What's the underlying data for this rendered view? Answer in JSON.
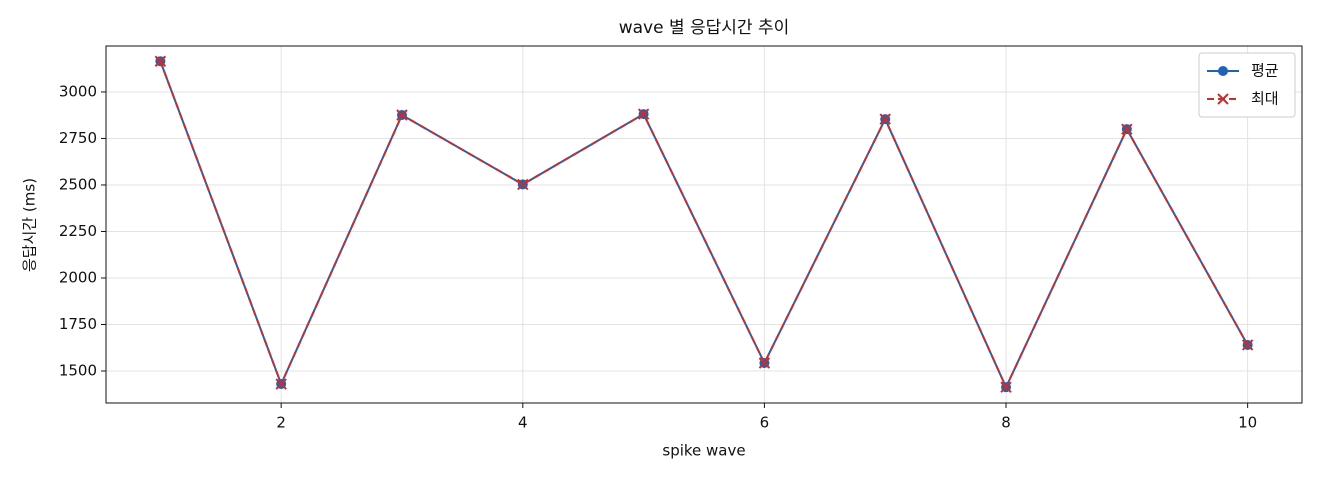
{
  "chart_data": {
    "type": "line",
    "title": "wave 별 응답시간 추이",
    "xlabel": "spike wave",
    "ylabel": "응답시간 (ms)",
    "x": [
      1,
      2,
      3,
      4,
      5,
      6,
      7,
      8,
      9,
      10
    ],
    "series": [
      {
        "name": "평균",
        "color": "#1f63b5",
        "marker": "o",
        "linestyle": "solid",
        "values": [
          3165,
          1430,
          2876,
          2503,
          2881,
          1543,
          2854,
          1413,
          2800,
          1640
        ]
      },
      {
        "name": "최대",
        "color": "#c62f2f",
        "marker": "x",
        "linestyle": "dashed",
        "values": [
          3165,
          1430,
          2876,
          2503,
          2881,
          1543,
          2854,
          1413,
          2800,
          1640
        ]
      }
    ],
    "xlim": [
      0.55,
      10.45
    ],
    "ylim": [
      1328,
      3247
    ],
    "xticks": [
      2,
      4,
      6,
      8,
      10
    ],
    "yticks": [
      1500,
      1750,
      2000,
      2250,
      2500,
      2750,
      3000
    ],
    "grid": true,
    "legend": "upper right"
  }
}
